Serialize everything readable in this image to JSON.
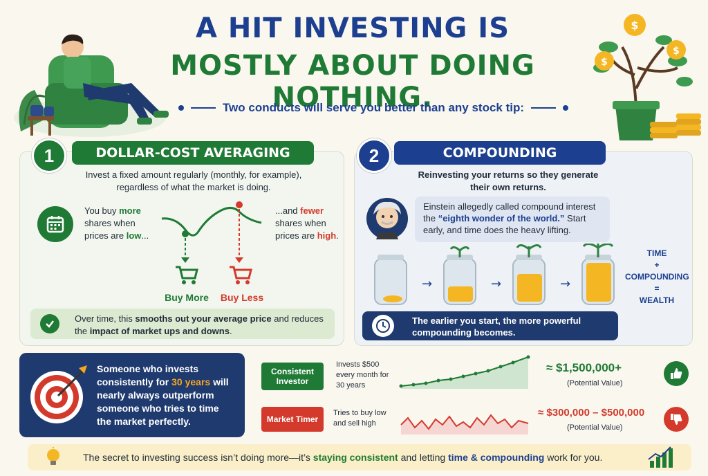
{
  "header": {
    "title_line1": "A HIT INVESTING IS",
    "title_line2": "MOSTLY ABOUT DOING NOTHING.",
    "subtitle": "Two conducts will serve you better than any stock tip:"
  },
  "section1": {
    "number": "1",
    "title": "DOLLAR-COST AVERAGING",
    "intro": "Invest a fixed amount regularly (monthly, for example), regardless of what the market is doing.",
    "left_text_a": "You buy ",
    "left_text_more": "more",
    "left_text_b": " shares when prices are ",
    "left_text_low": "low",
    "left_text_c": "...",
    "right_text_a": "...and ",
    "right_text_fewer": "fewer",
    "right_text_b": " shares when prices are ",
    "right_text_high": "high",
    "right_text_c": ".",
    "buy_more": "Buy More",
    "buy_less": "Buy Less",
    "summary_a": "Over time, this ",
    "summary_bold1": "smooths out your average price",
    "summary_b": " and reduces the ",
    "summary_bold2": "impact of market ups and downs",
    "summary_c": "."
  },
  "section2": {
    "number": "2",
    "title": "COMPOUNDING",
    "intro": "Reinvesting your returns so they generate their own returns.",
    "quote_a": "Einstein allegedly called compound interest the ",
    "quote_highlight": "“eighth wonder of the world.”",
    "quote_b": " Start early, and time does the heavy lifting.",
    "equation": [
      "TIME",
      "+",
      "COMPOUNDING",
      "=",
      "WEALTH"
    ],
    "note": "The earlier you start, the more powerful compounding becomes."
  },
  "comparison": {
    "target_text_a": "Someone who invests consistently for ",
    "target_years": "30 years",
    "target_text_b": " will nearly always outperform someone who tries to time the market perfectly.",
    "consistent": {
      "label": "Consistent Investor",
      "desc": "Invests $500 every month for 30 years",
      "desc_highlight": "$500",
      "value": "≈ $1,500,000+",
      "value_note": "(Potential Value)"
    },
    "timer": {
      "label": "Market Timer",
      "desc": "Tries to buy low and sell high",
      "value": "≈ $300,000 – $500,000",
      "value_note": "(Potential Value)"
    }
  },
  "footer": {
    "text_a": "The secret to investing success isn’t doing more—it’s ",
    "text_green": "staying consistent",
    "text_b": " and letting ",
    "text_blue": "time & compounding",
    "text_c": " work for you."
  },
  "colors": {
    "navy": "#1c3f8f",
    "green": "#1f7a35",
    "red": "#d33a2c",
    "gold": "#f5a623"
  }
}
